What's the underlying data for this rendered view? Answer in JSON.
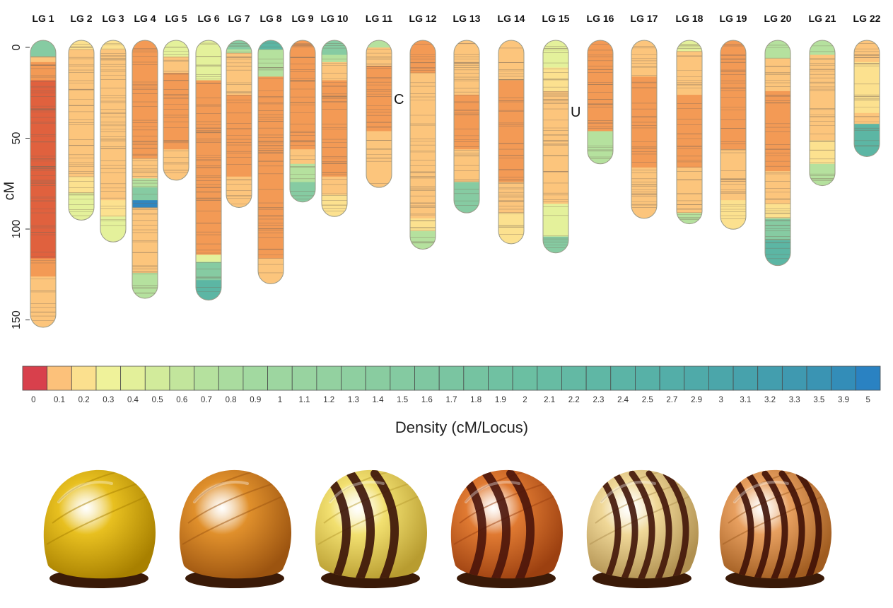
{
  "axis": {
    "label": "cM",
    "ticks": [
      0,
      50,
      100,
      150
    ]
  },
  "linkage_groups": [
    {
      "label": "LG 1",
      "length": 158
    },
    {
      "label": "LG 2",
      "length": 99
    },
    {
      "label": "LG 3",
      "length": 111
    },
    {
      "label": "LG 4",
      "length": 142
    },
    {
      "label": "LG 5",
      "length": 77
    },
    {
      "label": "LG 6",
      "length": 143
    },
    {
      "label": "LG 7",
      "length": 92
    },
    {
      "label": "LG 8",
      "length": 134
    },
    {
      "label": "LG 9",
      "length": 89
    },
    {
      "label": "LG 10",
      "length": 97
    },
    {
      "label": "LG 11",
      "length": 81
    },
    {
      "label": "LG 12",
      "length": 115
    },
    {
      "label": "LG 13",
      "length": 95
    },
    {
      "label": "LG 14",
      "length": 112
    },
    {
      "label": "LG 15",
      "length": 117
    },
    {
      "label": "LG 16",
      "length": 68
    },
    {
      "label": "LG 17",
      "length": 98
    },
    {
      "label": "LG 18",
      "length": 101
    },
    {
      "label": "LG 19",
      "length": 104
    },
    {
      "label": "LG 20",
      "length": 124
    },
    {
      "label": "LG 21",
      "length": 80
    },
    {
      "label": "LG 22",
      "length": 64
    }
  ],
  "markers": [
    {
      "group": "LG 11",
      "label": "C",
      "position_cm": 33
    },
    {
      "group": "LG 15",
      "label": "U",
      "position_cm": 40
    }
  ],
  "legend": {
    "title": "Density (cM/Locus)",
    "values": [
      "0",
      "0.1",
      "0.2",
      "0.3",
      "0.4",
      "0.5",
      "0.6",
      "0.7",
      "0.8",
      "0.9",
      "1",
      "1.1",
      "1.2",
      "1.3",
      "1.4",
      "1.5",
      "1.6",
      "1.7",
      "1.8",
      "1.9",
      "2",
      "2.1",
      "2.2",
      "2.3",
      "2.4",
      "2.5",
      "2.7",
      "2.9",
      "3",
      "3.1",
      "3.2",
      "3.3",
      "3.5",
      "3.9",
      "5"
    ],
    "colors": [
      "#d8404c",
      "#fcc17a",
      "#fbe08e",
      "#eff29a",
      "#e3f09a",
      "#d2eb9b",
      "#c2e59c",
      "#b5e19e",
      "#aadc9f",
      "#a2d9a0",
      "#9dd6a0",
      "#98d3a0",
      "#93d1a0",
      "#8ecfa0",
      "#89cca0",
      "#84caa1",
      "#7fc7a1",
      "#7ac5a1",
      "#75c3a1",
      "#70c1a2",
      "#6bbfa2",
      "#67bca3",
      "#63b9a4",
      "#5fb7a5",
      "#5bb4a6",
      "#57b1a7",
      "#53aea8",
      "#4faaa9",
      "#4ba6aa",
      "#47a2ac",
      "#439eae",
      "#3f99b0",
      "#3a94b3",
      "#338db8",
      "#2a82c2"
    ]
  },
  "shells": [
    {
      "name": "yellow-unbanded-shell",
      "base": "#e8c020",
      "dark": "#a88000",
      "band": null
    },
    {
      "name": "orange-unbanded-shell",
      "base": "#e0902c",
      "dark": "#9c5410",
      "band": null
    },
    {
      "name": "yellow-banded-shell",
      "base": "#f2e070",
      "dark": "#b89c30",
      "band": "#3a1208"
    },
    {
      "name": "orange-banded-shell",
      "base": "#e07a32",
      "dark": "#9c4010",
      "band": "#4a140a"
    },
    {
      "name": "cream-multi-banded-shell",
      "base": "#f0d898",
      "dark": "#b09050",
      "band": "#401408"
    },
    {
      "name": "orange-multi-banded-shell",
      "base": "#e8a060",
      "dark": "#a05c20",
      "band": "#3e1006"
    }
  ]
}
